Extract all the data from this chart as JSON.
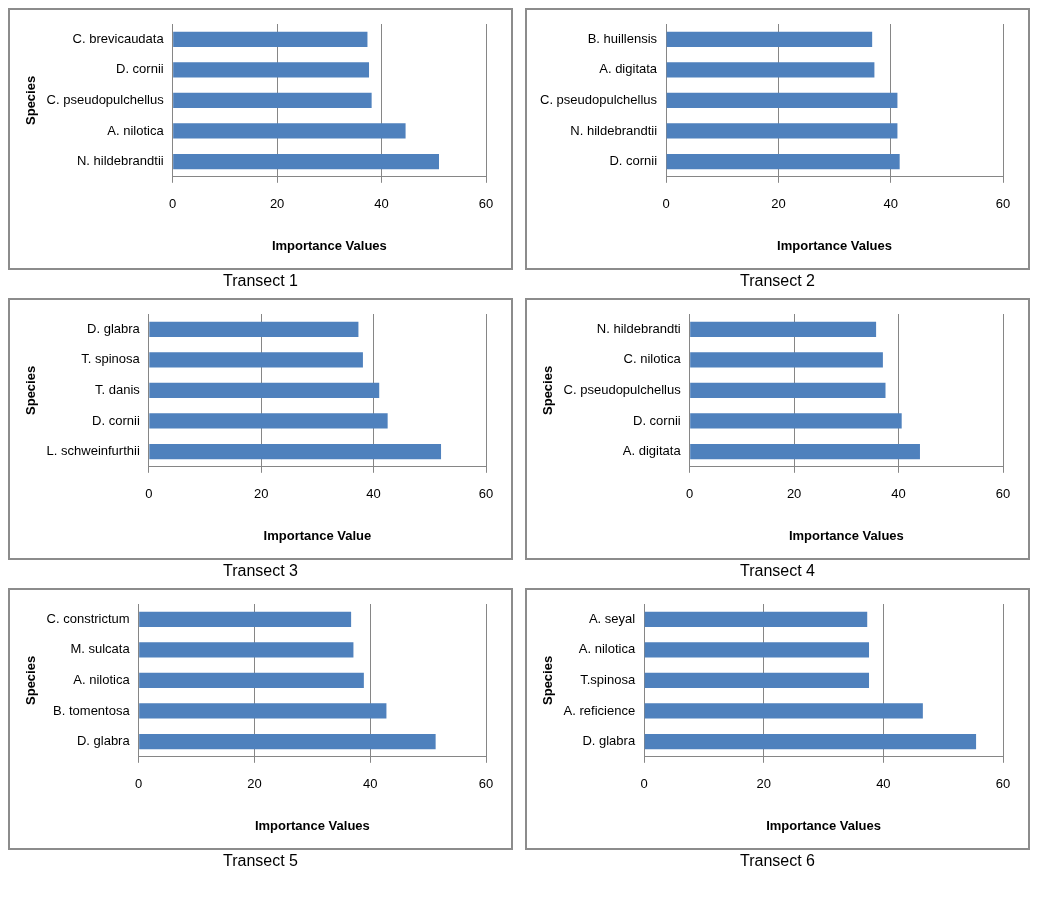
{
  "chart_data": [
    {
      "type": "bar",
      "orientation": "horizontal",
      "title": "Transect 1",
      "xlabel": "Importance Values",
      "ylabel": "Species",
      "categories": [
        "C. brevicaudata",
        "D. cornii",
        "C. pseudopulchellus",
        "A. nilotica",
        "N. hildebrandtii"
      ],
      "values": [
        37.3,
        37.6,
        38.1,
        44.6,
        51.0
      ],
      "color": "#4f81bd",
      "xlim": [
        0,
        60
      ],
      "xticks": [
        0,
        20,
        40,
        60
      ],
      "grid": "x"
    },
    {
      "type": "bar",
      "orientation": "horizontal",
      "title": "Transect 2",
      "xlabel": "Importance Values",
      "categories": [
        "B. huillensis",
        "A. digitata",
        "C. pseudopulchellus",
        "N. hildebrandtii",
        "D. cornii"
      ],
      "values": [
        36.7,
        37.1,
        41.2,
        41.2,
        41.6
      ],
      "color": "#4f81bd",
      "xlim": [
        0,
        60
      ],
      "xticks": [
        0,
        20,
        40,
        60
      ],
      "grid": "x"
    },
    {
      "type": "bar",
      "orientation": "horizontal",
      "title": "Transect 3",
      "xlabel": "Importance Value",
      "ylabel": "Species",
      "categories": [
        "D. glabra",
        "T. spinosa",
        "T. danis",
        "D. cornii",
        "L. schweinfurthii"
      ],
      "values": [
        37.3,
        38.1,
        41.0,
        42.5,
        52.0
      ],
      "color": "#4f81bd",
      "xlim": [
        0,
        60
      ],
      "xticks": [
        0,
        20,
        40,
        60
      ],
      "grid": "x"
    },
    {
      "type": "bar",
      "orientation": "horizontal",
      "title": "Transect 4",
      "xlabel": "Importance Values",
      "ylabel": "Species",
      "categories": [
        "N. hildebrandti",
        "C. nilotica",
        "C. pseudopulchellus",
        "D. cornii",
        "A. digitata"
      ],
      "values": [
        35.7,
        37.0,
        37.5,
        40.6,
        44.1
      ],
      "color": "#4f81bd",
      "xlim": [
        0,
        60
      ],
      "xticks": [
        0,
        20,
        40,
        60
      ],
      "grid": "x"
    },
    {
      "type": "bar",
      "orientation": "horizontal",
      "title": "Transect 5",
      "xlabel": "Importance Values",
      "ylabel": "Species",
      "categories": [
        "C. constrictum",
        "M. sulcata",
        "A. nilotica",
        "B. tomentosa",
        "D. glabra"
      ],
      "values": [
        36.7,
        37.1,
        38.9,
        42.8,
        51.3
      ],
      "color": "#4f81bd",
      "xlim": [
        0,
        60
      ],
      "xticks": [
        0,
        20,
        40,
        60
      ],
      "grid": "x"
    },
    {
      "type": "bar",
      "orientation": "horizontal",
      "title": "Transect 6",
      "xlabel": "Importance Values",
      "ylabel": "Species",
      "categories": [
        "A. seyal",
        "A. nilotica",
        "T.spinosa",
        "A. reficience",
        "D. glabra"
      ],
      "values": [
        37.3,
        37.6,
        37.6,
        46.6,
        55.5
      ],
      "color": "#4f81bd",
      "xlim": [
        0,
        60
      ],
      "xticks": [
        0,
        20,
        40,
        60
      ],
      "grid": "x"
    }
  ]
}
